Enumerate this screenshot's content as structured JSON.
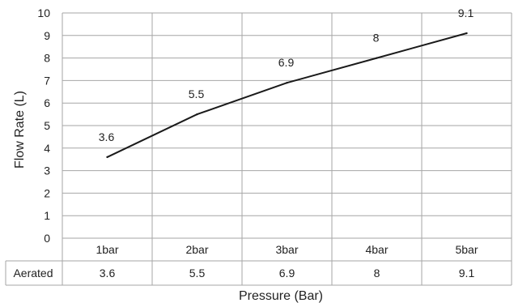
{
  "chart_data": {
    "type": "line",
    "categories": [
      "1bar",
      "2bar",
      "3bar",
      "4bar",
      "5bar"
    ],
    "series": [
      {
        "name": "Aerated",
        "values": [
          3.6,
          5.5,
          6.9,
          8,
          9.1
        ]
      }
    ],
    "data_labels": [
      "3.6",
      "5.5",
      "6.9",
      "8",
      "9.1"
    ],
    "table_values": [
      "3.6",
      "5.5",
      "6.9",
      "8",
      "9.1"
    ],
    "y_ticks": [
      "0",
      "1",
      "2",
      "3",
      "4",
      "5",
      "6",
      "7",
      "8",
      "9",
      "10"
    ],
    "xlabel": "Pressure (Bar)",
    "ylabel": "Flow Rate (L)",
    "ylim": [
      0,
      10
    ],
    "grid": true,
    "data_table": true,
    "line_color": "#1a1a1a",
    "grid_color": "#a6a6a6"
  }
}
